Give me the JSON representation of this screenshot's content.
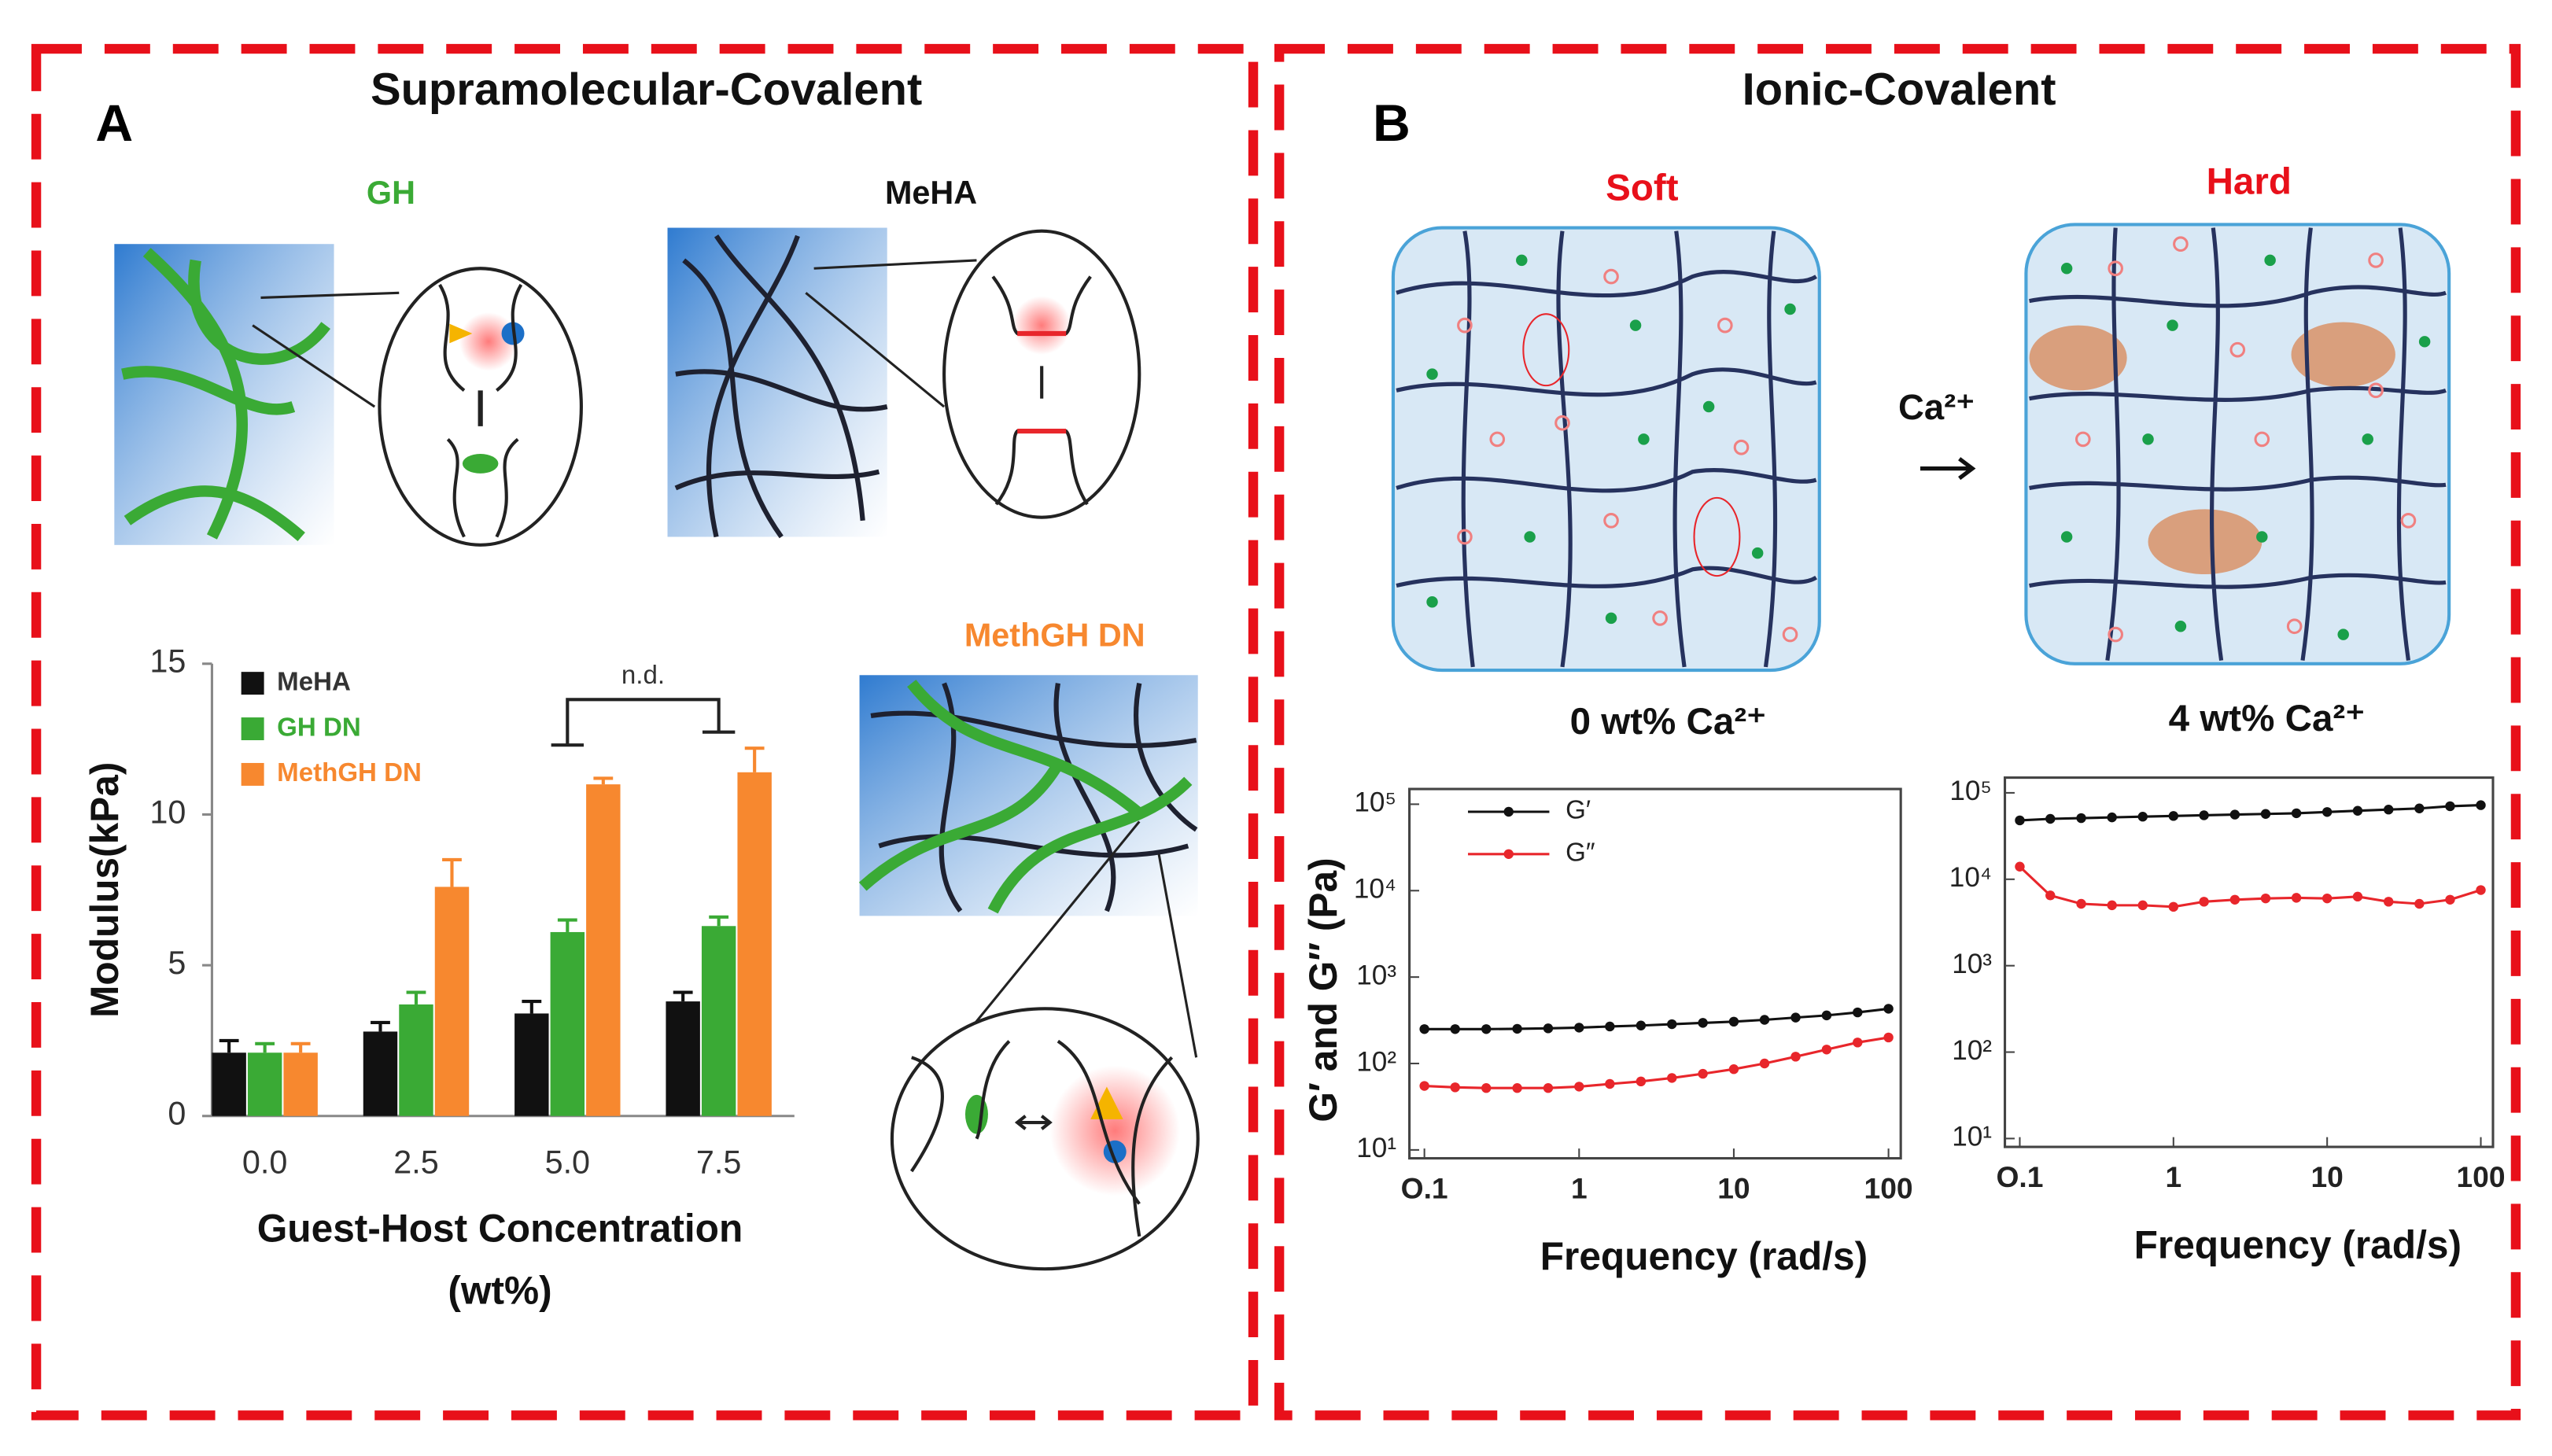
{
  "panels": [
    {
      "letter": "A",
      "title": "Supramolecular-Covalent",
      "labels": [
        "GH",
        "MeHA",
        "MethGH DN"
      ]
    },
    {
      "letter": "B",
      "title": "Ionic-Covalent",
      "labels": [
        "Soft",
        "Hard",
        "Ca²⁺",
        "0 wt% Ca²⁺",
        "4 wt% Ca²⁺"
      ]
    }
  ],
  "chart_data": [
    {
      "type": "bar",
      "ylabel": "Modulus(kPa)",
      "xlabel": [
        "Guest-Host Concentration",
        "(wt%)"
      ],
      "categories": [
        "0.0",
        "2.5",
        "5.0",
        "7.5"
      ],
      "series": [
        {
          "name": "MeHA",
          "color": "#111111",
          "values": [
            2.1,
            2.8,
            3.4,
            3.8
          ],
          "errors": [
            0.4,
            0.3,
            0.4,
            0.3
          ]
        },
        {
          "name": "GH DN",
          "color": "#3aaa35",
          "values": [
            2.1,
            3.7,
            6.1,
            6.3
          ],
          "errors": [
            0.3,
            0.4,
            0.4,
            0.3
          ]
        },
        {
          "name": "MethGH DN",
          "color": "#f7882f",
          "values": [
            2.1,
            7.6,
            11.0,
            11.4
          ],
          "errors": [
            0.3,
            0.9,
            0.2,
            0.8
          ]
        }
      ],
      "ylim": [
        0,
        15
      ],
      "yticks": [
        0,
        5,
        10,
        15
      ],
      "annotation": "n.d.",
      "legend": "upper left"
    },
    {
      "type": "line",
      "xlabel": "Frequency (rad/s)",
      "ylabel": "G′ and G″ (Pa)",
      "xscale": "log",
      "yscale": "log",
      "x": [
        0.1,
        0.158,
        0.251,
        0.398,
        0.631,
        1,
        1.58,
        2.51,
        3.98,
        6.31,
        10,
        15.8,
        25.1,
        39.8,
        63.1,
        100
      ],
      "series": [
        {
          "name": "G′",
          "color": "#111111",
          "values": [
            250,
            250,
            250,
            252,
            255,
            260,
            268,
            275,
            285,
            295,
            305,
            320,
            340,
            360,
            390,
            430
          ]
        },
        {
          "name": "G″",
          "color": "#e8262b",
          "values": [
            55,
            53,
            52,
            52,
            52,
            54,
            58,
            62,
            68,
            76,
            86,
            100,
            120,
            145,
            175,
            200
          ]
        }
      ],
      "xlim": [
        0.08,
        120
      ],
      "ylim": [
        8,
        150000
      ],
      "xticks": [
        {
          "value": 0.1,
          "label": "O.1"
        },
        1,
        10,
        100
      ],
      "yticks": [
        {
          "value": 10,
          "label": "10¹"
        },
        {
          "value": 100,
          "label": "10²"
        },
        {
          "value": 1000,
          "label": "10³"
        },
        {
          "value": 10000,
          "label": "10⁴"
        },
        {
          "value": 100000,
          "label": "10⁵"
        }
      ],
      "legend": "upper left"
    },
    {
      "type": "line",
      "xlabel": "Frequency (rad/s)",
      "xscale": "log",
      "yscale": "log",
      "x": [
        0.1,
        0.158,
        0.251,
        0.398,
        0.631,
        1,
        1.58,
        2.51,
        3.98,
        6.31,
        10,
        15.8,
        25.1,
        39.8,
        63.1,
        100
      ],
      "series": [
        {
          "name": "G′",
          "color": "#111111",
          "values": [
            48000,
            50000,
            51000,
            52000,
            53000,
            54000,
            55000,
            56000,
            57000,
            58000,
            60000,
            62000,
            64000,
            66000,
            70000,
            72000
          ]
        },
        {
          "name": "G″",
          "color": "#e8262b",
          "values": [
            14000,
            6500,
            5200,
            5000,
            5000,
            4800,
            5500,
            5800,
            6000,
            6100,
            6000,
            6300,
            5500,
            5200,
            5800,
            7500
          ]
        }
      ],
      "xlim": [
        0.08,
        120
      ],
      "ylim": [
        8,
        150000
      ],
      "xticks": [
        {
          "value": 0.1,
          "label": "O.1"
        },
        1,
        10,
        100
      ],
      "yticks": [
        {
          "value": 10,
          "label": "10¹"
        },
        {
          "value": 100,
          "label": "10²"
        },
        {
          "value": 1000,
          "label": "10³"
        },
        {
          "value": 10000,
          "label": "10⁴"
        },
        {
          "value": 100000,
          "label": "10⁵"
        }
      ]
    }
  ]
}
